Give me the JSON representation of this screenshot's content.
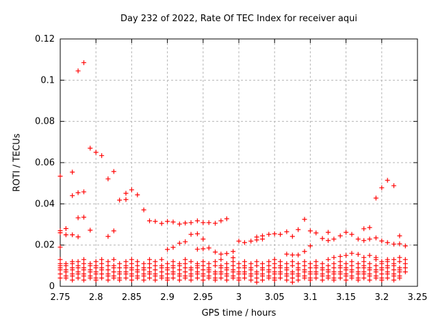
{
  "chart_data": {
    "type": "scatter",
    "title": "Day 232 of 2022, Rate Of TEC Index for receiver aqui",
    "xlabel": "GPS time / hours",
    "ylabel": "ROTI / TECUs",
    "xlim": [
      2.75,
      3.25
    ],
    "ylim": [
      0,
      0.12
    ],
    "xticks": {
      "values": [
        2.75,
        2.8,
        2.85,
        2.9,
        2.95,
        3.0,
        3.05,
        3.1,
        3.15,
        3.2,
        3.25
      ],
      "labels": [
        "2.75",
        "2.8",
        "2.85",
        "2.9",
        "2.95",
        "3",
        "3.05",
        "3.1",
        "3.15",
        "3.2",
        "3.25"
      ]
    },
    "yticks": {
      "values": [
        0,
        0.02,
        0.04,
        0.06,
        0.08,
        0.1,
        0.12
      ],
      "labels": [
        "0",
        "0.02",
        "0.04",
        "0.06",
        "0.08",
        "0.1",
        "0.12"
      ]
    },
    "grid": true,
    "legend_position": "none",
    "marker": {
      "shape": "plus",
      "color": "#ff0000",
      "arm": 3.5,
      "stroke_width": 1.2
    },
    "colors": {
      "text": "#000000",
      "border": "#000000",
      "grid": "#b4b4b4",
      "background": "#ffffff"
    },
    "columns": [
      {
        "x": 2.75,
        "y": [
          0.004,
          0.006,
          0.008,
          0.009,
          0.01,
          0.011,
          0.013,
          0.019,
          0.026,
          0.027,
          0.0534
        ]
      },
      {
        "x": 2.758,
        "y": [
          0.004,
          0.005,
          0.007,
          0.008,
          0.01,
          0.011,
          0.025,
          0.028
        ]
      },
      {
        "x": 2.767,
        "y": [
          0.003,
          0.005,
          0.006,
          0.008,
          0.009,
          0.011,
          0.012,
          0.025,
          0.044,
          0.0554
        ]
      },
      {
        "x": 2.775,
        "y": [
          0.004,
          0.006,
          0.007,
          0.009,
          0.01,
          0.012,
          0.024,
          0.0332,
          0.0454,
          0.1045
        ]
      },
      {
        "x": 2.783,
        "y": [
          0.003,
          0.005,
          0.006,
          0.008,
          0.009,
          0.011,
          0.013,
          0.0335,
          0.0458,
          0.1085
        ]
      },
      {
        "x": 2.792,
        "y": [
          0.004,
          0.005,
          0.007,
          0.008,
          0.01,
          0.011,
          0.0272,
          0.067
        ]
      },
      {
        "x": 2.8,
        "y": [
          0.003,
          0.004,
          0.006,
          0.007,
          0.009,
          0.01,
          0.012,
          0.065
        ]
      },
      {
        "x": 2.808,
        "y": [
          0.004,
          0.006,
          0.008,
          0.009,
          0.011,
          0.013,
          0.0634
        ]
      },
      {
        "x": 2.817,
        "y": [
          0.003,
          0.005,
          0.006,
          0.008,
          0.01,
          0.012,
          0.0242,
          0.0521
        ]
      },
      {
        "x": 2.825,
        "y": [
          0.004,
          0.005,
          0.007,
          0.009,
          0.01,
          0.013,
          0.0269,
          0.0557
        ]
      },
      {
        "x": 2.833,
        "y": [
          0.003,
          0.004,
          0.006,
          0.007,
          0.009,
          0.011,
          0.0418
        ]
      },
      {
        "x": 2.842,
        "y": [
          0.004,
          0.006,
          0.007,
          0.009,
          0.01,
          0.012,
          0.0421,
          0.0451
        ]
      },
      {
        "x": 2.85,
        "y": [
          0.003,
          0.005,
          0.006,
          0.008,
          0.009,
          0.011,
          0.013,
          0.0468
        ]
      },
      {
        "x": 2.858,
        "y": [
          0.004,
          0.005,
          0.007,
          0.008,
          0.01,
          0.012,
          0.0444
        ]
      },
      {
        "x": 2.867,
        "y": [
          0.003,
          0.005,
          0.006,
          0.008,
          0.009,
          0.011,
          0.0371
        ]
      },
      {
        "x": 2.875,
        "y": [
          0.004,
          0.006,
          0.007,
          0.009,
          0.011,
          0.013,
          0.0318
        ]
      },
      {
        "x": 2.883,
        "y": [
          0.003,
          0.005,
          0.006,
          0.008,
          0.01,
          0.012,
          0.0315
        ]
      },
      {
        "x": 2.892,
        "y": [
          0.004,
          0.005,
          0.007,
          0.009,
          0.01,
          0.013,
          0.0305
        ]
      },
      {
        "x": 2.9,
        "y": [
          0.003,
          0.004,
          0.006,
          0.008,
          0.009,
          0.011,
          0.0179,
          0.0315
        ]
      },
      {
        "x": 2.908,
        "y": [
          0.004,
          0.006,
          0.007,
          0.009,
          0.01,
          0.012,
          0.0189,
          0.0312
        ]
      },
      {
        "x": 2.917,
        "y": [
          0.003,
          0.005,
          0.006,
          0.008,
          0.01,
          0.011,
          0.0209,
          0.0302
        ]
      },
      {
        "x": 2.925,
        "y": [
          0.004,
          0.005,
          0.007,
          0.009,
          0.011,
          0.013,
          0.0216,
          0.0307
        ]
      },
      {
        "x": 2.933,
        "y": [
          0.003,
          0.005,
          0.006,
          0.008,
          0.009,
          0.012,
          0.0252,
          0.0309
        ]
      },
      {
        "x": 2.942,
        "y": [
          0.004,
          0.006,
          0.007,
          0.009,
          0.01,
          0.011,
          0.018,
          0.0255,
          0.0318
        ]
      },
      {
        "x": 2.95,
        "y": [
          0.003,
          0.005,
          0.006,
          0.008,
          0.01,
          0.012,
          0.0182,
          0.0229,
          0.0309
        ]
      },
      {
        "x": 2.958,
        "y": [
          0.004,
          0.005,
          0.007,
          0.008,
          0.009,
          0.011,
          0.0186,
          0.0309
        ]
      },
      {
        "x": 2.967,
        "y": [
          0.003,
          0.004,
          0.006,
          0.007,
          0.01,
          0.012,
          0.0166,
          0.0306
        ]
      },
      {
        "x": 2.975,
        "y": [
          0.004,
          0.006,
          0.007,
          0.009,
          0.01,
          0.013,
          0.0156,
          0.0318
        ]
      },
      {
        "x": 2.983,
        "y": [
          0.003,
          0.005,
          0.006,
          0.008,
          0.009,
          0.011,
          0.0159,
          0.0328
        ]
      },
      {
        "x": 2.992,
        "y": [
          0.004,
          0.005,
          0.007,
          0.008,
          0.01,
          0.012,
          0.0139,
          0.0169
        ]
      },
      {
        "x": 3.0,
        "y": [
          0.003,
          0.004,
          0.006,
          0.007,
          0.009,
          0.011,
          0.0219
        ]
      },
      {
        "x": 3.008,
        "y": [
          0.004,
          0.006,
          0.007,
          0.009,
          0.01,
          0.012,
          0.0212
        ]
      },
      {
        "x": 3.017,
        "y": [
          0.003,
          0.005,
          0.006,
          0.008,
          0.009,
          0.011,
          0.0219
        ]
      },
      {
        "x": 3.025,
        "y": [
          0.002,
          0.004,
          0.006,
          0.007,
          0.01,
          0.012,
          0.0225,
          0.0239
        ]
      },
      {
        "x": 3.033,
        "y": [
          0.003,
          0.005,
          0.006,
          0.008,
          0.009,
          0.011,
          0.0229,
          0.0245
        ]
      },
      {
        "x": 3.042,
        "y": [
          0.004,
          0.005,
          0.007,
          0.008,
          0.01,
          0.012,
          0.0252
        ]
      },
      {
        "x": 3.05,
        "y": [
          0.003,
          0.004,
          0.006,
          0.007,
          0.009,
          0.011,
          0.013,
          0.0255
        ]
      },
      {
        "x": 3.058,
        "y": [
          0.004,
          0.006,
          0.007,
          0.009,
          0.01,
          0.012,
          0.0252
        ]
      },
      {
        "x": 3.067,
        "y": [
          0.003,
          0.005,
          0.006,
          0.008,
          0.009,
          0.011,
          0.0156,
          0.0265
        ]
      },
      {
        "x": 3.075,
        "y": [
          0.002,
          0.004,
          0.006,
          0.007,
          0.01,
          0.012,
          0.0152,
          0.0242
        ]
      },
      {
        "x": 3.083,
        "y": [
          0.003,
          0.005,
          0.006,
          0.008,
          0.009,
          0.011,
          0.0152,
          0.0275
        ]
      },
      {
        "x": 3.092,
        "y": [
          0.004,
          0.005,
          0.007,
          0.008,
          0.01,
          0.012,
          0.0169,
          0.0325
        ]
      },
      {
        "x": 3.1,
        "y": [
          0.003,
          0.004,
          0.006,
          0.007,
          0.009,
          0.011,
          0.0196,
          0.0269
        ]
      },
      {
        "x": 3.108,
        "y": [
          0.004,
          0.006,
          0.007,
          0.009,
          0.01,
          0.012,
          0.0259
        ]
      },
      {
        "x": 3.117,
        "y": [
          0.003,
          0.005,
          0.006,
          0.008,
          0.009,
          0.011,
          0.0232
        ]
      },
      {
        "x": 3.125,
        "y": [
          0.004,
          0.005,
          0.007,
          0.008,
          0.01,
          0.013,
          0.0222,
          0.0262
        ]
      },
      {
        "x": 3.133,
        "y": [
          0.003,
          0.004,
          0.006,
          0.007,
          0.009,
          0.011,
          0.014,
          0.0229
        ]
      },
      {
        "x": 3.142,
        "y": [
          0.004,
          0.006,
          0.007,
          0.009,
          0.01,
          0.012,
          0.0145,
          0.0245
        ]
      },
      {
        "x": 3.15,
        "y": [
          0.003,
          0.005,
          0.006,
          0.008,
          0.009,
          0.011,
          0.015,
          0.0262
        ]
      },
      {
        "x": 3.158,
        "y": [
          0.004,
          0.005,
          0.007,
          0.008,
          0.01,
          0.012,
          0.016,
          0.0252
        ]
      },
      {
        "x": 3.167,
        "y": [
          0.003,
          0.004,
          0.006,
          0.007,
          0.009,
          0.011,
          0.0155,
          0.0229
        ]
      },
      {
        "x": 3.175,
        "y": [
          0.004,
          0.006,
          0.007,
          0.009,
          0.01,
          0.012,
          0.014,
          0.0222,
          0.0279
        ]
      },
      {
        "x": 3.183,
        "y": [
          0.003,
          0.005,
          0.006,
          0.008,
          0.009,
          0.011,
          0.015,
          0.0229,
          0.0285
        ]
      },
      {
        "x": 3.192,
        "y": [
          0.004,
          0.005,
          0.007,
          0.008,
          0.01,
          0.013,
          0.014,
          0.0235,
          0.0428
        ]
      },
      {
        "x": 3.2,
        "y": [
          0.003,
          0.004,
          0.006,
          0.008,
          0.009,
          0.011,
          0.012,
          0.022,
          0.0478
        ]
      },
      {
        "x": 3.208,
        "y": [
          0.004,
          0.006,
          0.007,
          0.009,
          0.01,
          0.012,
          0.013,
          0.0212,
          0.0514
        ]
      },
      {
        "x": 3.217,
        "y": [
          0.003,
          0.005,
          0.006,
          0.008,
          0.01,
          0.011,
          0.013,
          0.0205,
          0.0488
        ]
      },
      {
        "x": 3.225,
        "y": [
          0.004,
          0.005,
          0.007,
          0.008,
          0.009,
          0.012,
          0.014,
          0.0206,
          0.0245
        ]
      },
      {
        "x": 3.233,
        "y": [
          0.007,
          0.009,
          0.011,
          0.013,
          0.0196
        ]
      }
    ]
  }
}
